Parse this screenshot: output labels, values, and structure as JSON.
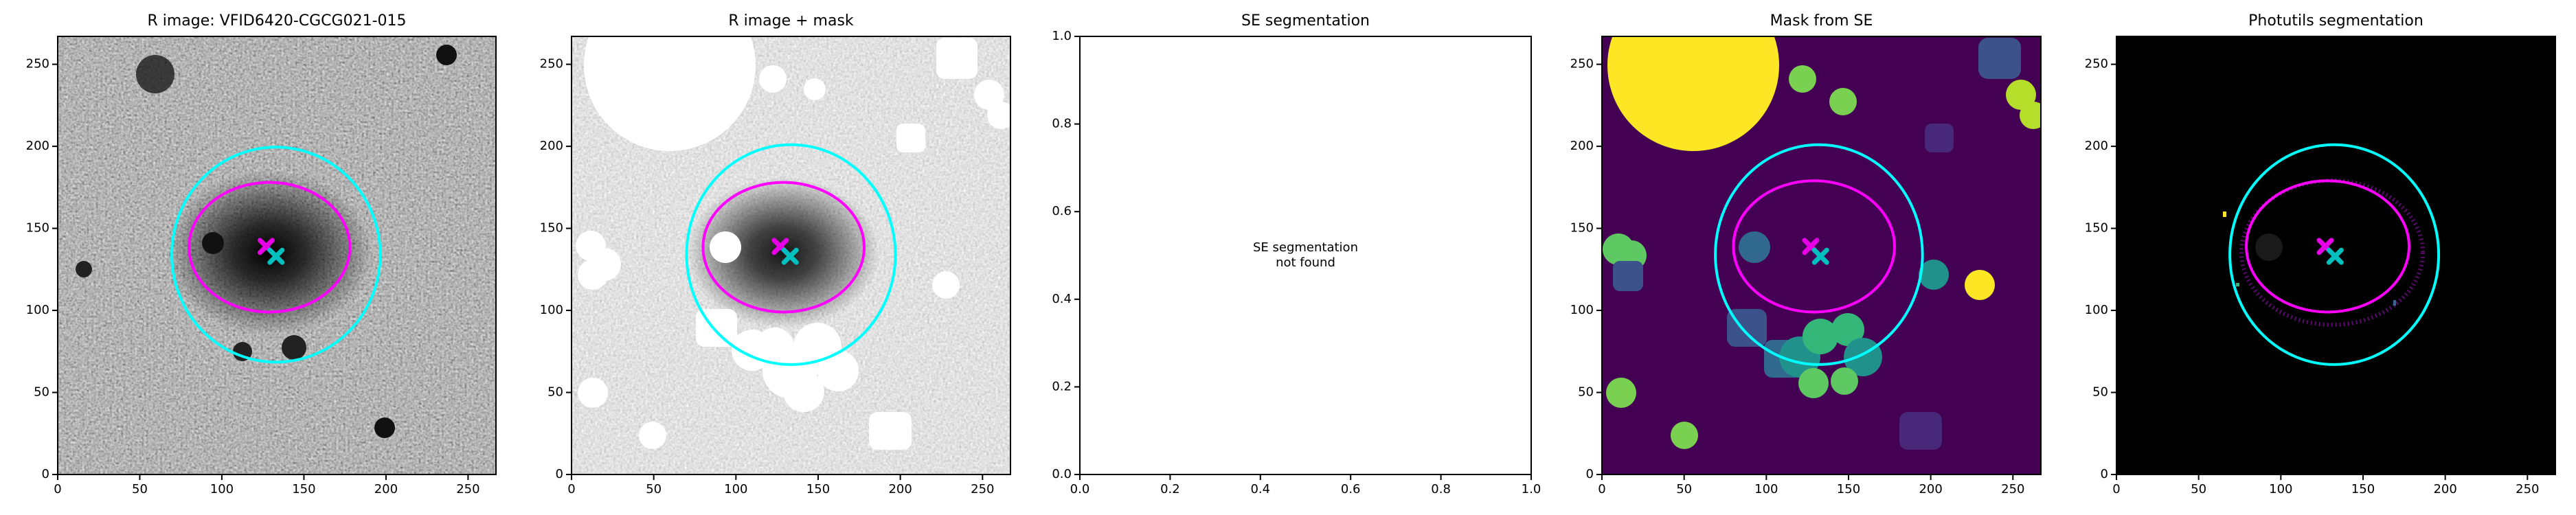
{
  "chart_data": [
    {
      "type": "image",
      "title": "R image: VFID6420-CGCG021-015",
      "xlim": [
        0,
        267
      ],
      "ylim": [
        0,
        267
      ],
      "xticks": [
        0,
        50,
        100,
        150,
        200,
        250
      ],
      "yticks": [
        0,
        50,
        100,
        150,
        200,
        250
      ],
      "ellipses": [
        {
          "x": 133,
          "y": 134,
          "width": 127,
          "height": 131,
          "color": "#00ffff"
        },
        {
          "x": 129,
          "y": 138.5,
          "width": 98,
          "height": 79,
          "color": "#ff00ff"
        }
      ],
      "markers": [
        {
          "x": 127,
          "y": 139,
          "color": "#e600e6"
        },
        {
          "x": 133,
          "y": 133,
          "color": "#00bfbf"
        }
      ]
    },
    {
      "type": "image",
      "title": "R image + mask",
      "xlim": [
        0,
        267
      ],
      "ylim": [
        0,
        267
      ],
      "xticks": [
        0,
        50,
        100,
        150,
        200,
        250
      ],
      "yticks": [
        0,
        50,
        100,
        150,
        200,
        250
      ],
      "ellipses": [
        {
          "x": 133.5,
          "y": 134,
          "width": 127,
          "height": 134,
          "color": "#00ffff"
        },
        {
          "x": 129,
          "y": 138.5,
          "width": 98,
          "height": 79,
          "color": "#ff00ff"
        }
      ],
      "markers": [
        {
          "x": 127,
          "y": 139,
          "color": "#e600e6"
        },
        {
          "x": 133,
          "y": 133,
          "color": "#00bfbf"
        }
      ]
    },
    {
      "type": "empty",
      "title": "SE segmentation",
      "xlim": [
        0,
        1
      ],
      "ylim": [
        0,
        1
      ],
      "xticks": [
        {
          "value": 0,
          "label": "0.0"
        },
        0.2,
        0.4,
        0.6,
        0.8,
        {
          "value": 1,
          "label": "1.0"
        }
      ],
      "yticks": [
        {
          "value": 0,
          "label": "0.0"
        },
        0.2,
        0.4,
        0.6,
        0.8,
        {
          "value": 1,
          "label": "1.0"
        }
      ],
      "annotation": [
        "SE segmentation",
        "not found"
      ]
    },
    {
      "type": "image",
      "title": "Mask from SE",
      "xlim": [
        0,
        267
      ],
      "ylim": [
        0,
        267
      ],
      "xticks": [
        0,
        50,
        100,
        150,
        200,
        250
      ],
      "yticks": [
        0,
        50,
        100,
        150,
        200,
        250
      ],
      "ellipses": [
        {
          "x": 132,
          "y": 134,
          "width": 126,
          "height": 134,
          "color": "#00ffff"
        },
        {
          "x": 129,
          "y": 139,
          "width": 98,
          "height": 80,
          "color": "#ff00ff"
        }
      ],
      "markers": [
        {
          "x": 127,
          "y": 139,
          "color": "#e600e6"
        },
        {
          "x": 133,
          "y": 133,
          "color": "#00bfbf"
        }
      ]
    },
    {
      "type": "image",
      "title": "Photutils segmentation",
      "xlim": [
        0,
        267
      ],
      "ylim": [
        0,
        267
      ],
      "xticks": [
        0,
        50,
        100,
        150,
        200,
        250
      ],
      "yticks": [
        0,
        50,
        100,
        150,
        200,
        250
      ],
      "ellipses": [
        {
          "x": 132.5,
          "y": 134,
          "width": 127,
          "height": 134,
          "color": "#00ffff"
        },
        {
          "x": 128.5,
          "y": 139,
          "width": 99,
          "height": 80,
          "color": "#ff00ff"
        }
      ],
      "markers": [
        {
          "x": 127,
          "y": 139,
          "color": "#e600e6"
        },
        {
          "x": 133,
          "y": 133,
          "color": "#00bfbf"
        }
      ]
    }
  ]
}
